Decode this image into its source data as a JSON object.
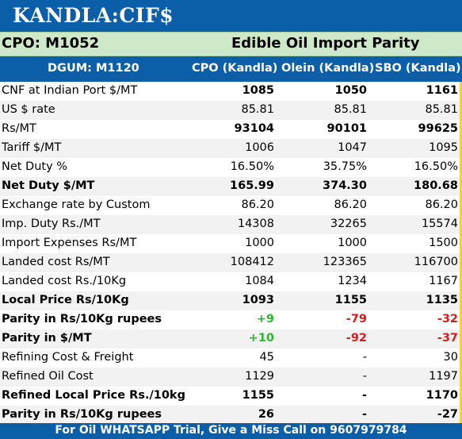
{
  "title": "KANDLA:CIF$",
  "subtitle_left": "CPO: M1052",
  "subtitle_right": "Edible Oil Import Parity",
  "header": {
    "col0": "DGUM: M1120",
    "col1": "CPO (Kandla)",
    "col2": "Olein (Kandla)",
    "col3": "SBO (Kandla)"
  },
  "rows": [
    {
      "label": "CNF at Indian Port $/MT",
      "cpo": "1085",
      "olein": "1050",
      "sbo": "1161",
      "bold_values": true
    },
    {
      "label": "US $ rate",
      "cpo": "85.81",
      "olein": "85.81",
      "sbo": "85.81"
    },
    {
      "label": "Rs/MT",
      "cpo": "93104",
      "olein": "90101",
      "sbo": "99625",
      "bold_values": true
    },
    {
      "label": "Tariff $/MT",
      "cpo": "1006",
      "olein": "1047",
      "sbo": "1095"
    },
    {
      "label": "Net Duty %",
      "cpo": "16.50%",
      "olein": "35.75%",
      "sbo": "16.50%"
    },
    {
      "label": "Net Duty $/MT",
      "cpo": "165.99",
      "olein": "374.30",
      "sbo": "180.68",
      "bold": true
    },
    {
      "label": "Exchange rate by Custom",
      "cpo": "86.20",
      "olein": "86.20",
      "sbo": "86.20"
    },
    {
      "label": "Imp. Duty Rs./MT",
      "cpo": "14308",
      "olein": "32265",
      "sbo": "15574"
    },
    {
      "label": "Import Expenses Rs/MT",
      "cpo": "1000",
      "olein": "1000",
      "sbo": "1500"
    },
    {
      "label": "Landed cost Rs/MT",
      "cpo": "108412",
      "olein": "123365",
      "sbo": "116700"
    },
    {
      "label": "Landed cost Rs./10Kg",
      "cpo": "1084",
      "olein": "1234",
      "sbo": "1167"
    },
    {
      "label": "Local Price Rs/10Kg",
      "cpo": "1093",
      "olein": "1155",
      "sbo": "1135",
      "bold": true
    },
    {
      "label": "Parity in Rs/10Kg rupees",
      "cpo": "+9",
      "olein": "-79",
      "sbo": "-32",
      "bold": true,
      "colored": true
    },
    {
      "label": "Parity in $/MT",
      "cpo": "+10",
      "olein": "-92",
      "sbo": "-37",
      "bold": true,
      "colored": true
    },
    {
      "label": "Refining Cost & Freight",
      "cpo": "45",
      "olein": "-",
      "sbo": "30"
    },
    {
      "label": "Refined Oil Cost",
      "cpo": "1129",
      "olein": "-",
      "sbo": "1197"
    },
    {
      "label": "Refined Local Price Rs./10kg",
      "cpo": "1155",
      "olein": "-",
      "sbo": "1170",
      "bold": true
    },
    {
      "label": "Parity in Rs/10Kg rupees",
      "cpo": "26",
      "olein": "-",
      "sbo": "-27",
      "bold": true
    }
  ],
  "footer": "For Oil WHATSAPP Trial, Give a Miss Call on 9607979784",
  "colors": {
    "brand_blue": "#0a5fa8",
    "subtitle_green": "#cde9c7",
    "positive": "#2fb52f",
    "negative": "#d21e1e",
    "edge_yellow": "#f2d43a"
  }
}
